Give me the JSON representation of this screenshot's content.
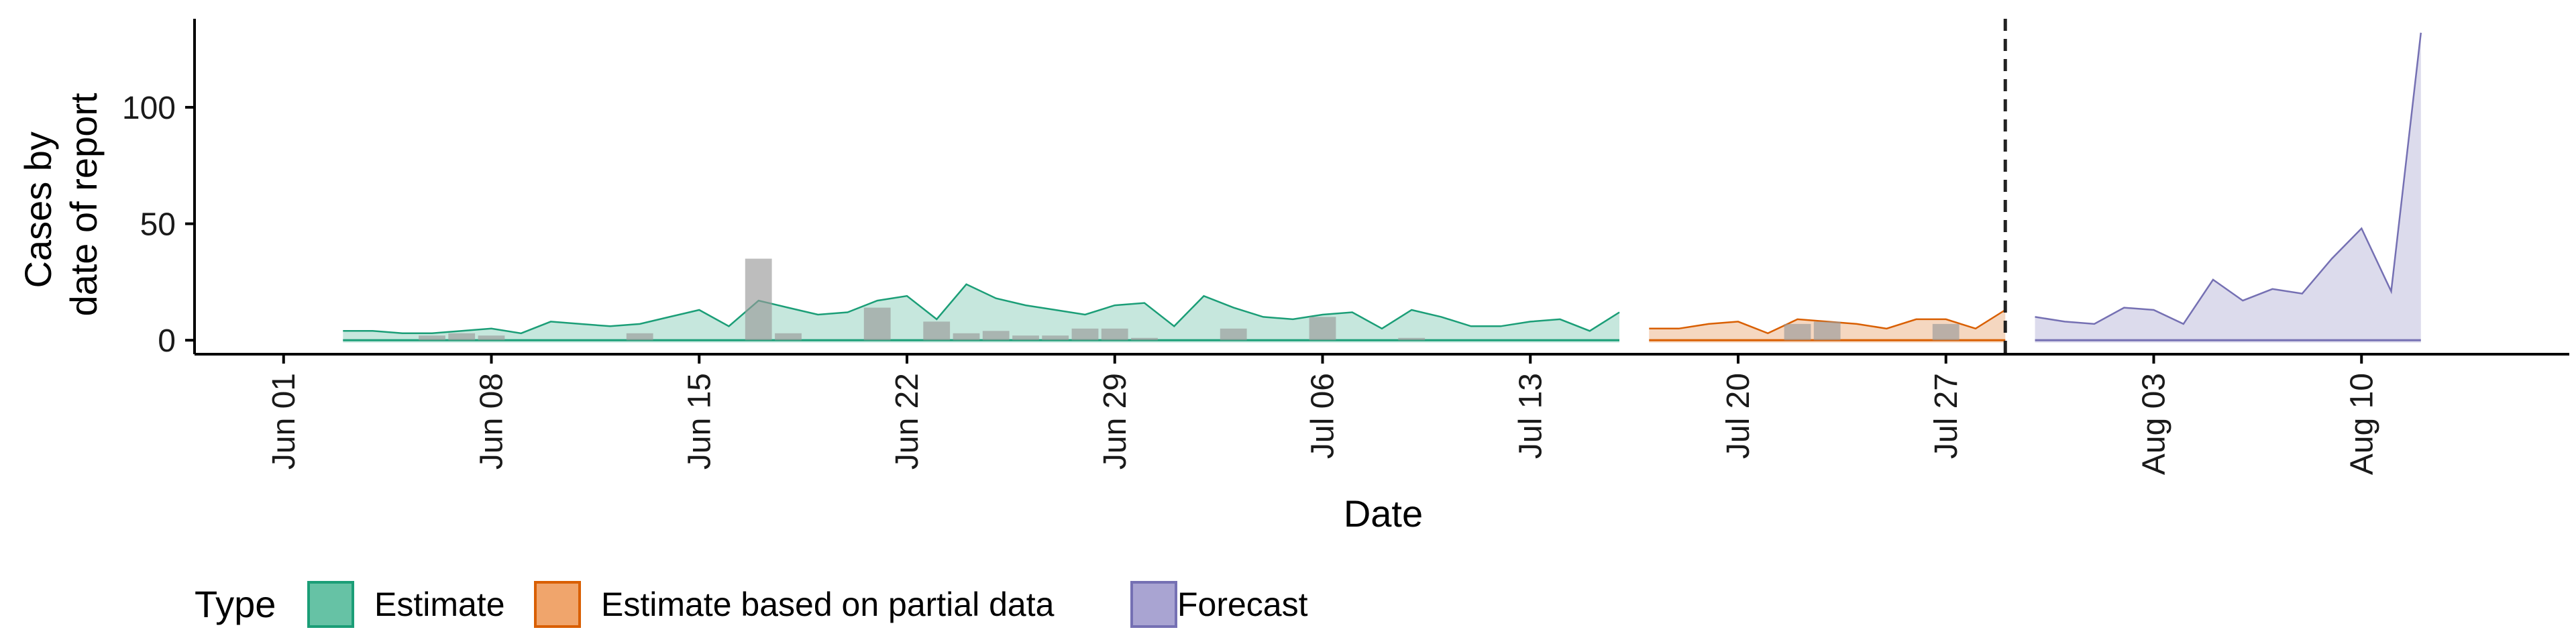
{
  "chart_data": {
    "type": "area",
    "xlabel": "Date",
    "ylabel_lines": [
      "Cases by",
      "date of report"
    ],
    "x_range": [
      "2020-05-29",
      "2020-08-17"
    ],
    "ylim": [
      -6,
      138
    ],
    "y_ticks": [
      0,
      50,
      100
    ],
    "x_ticks": [
      {
        "date": "2020-06-01",
        "label": "Jun 01"
      },
      {
        "date": "2020-06-08",
        "label": "Jun 08"
      },
      {
        "date": "2020-06-15",
        "label": "Jun 15"
      },
      {
        "date": "2020-06-22",
        "label": "Jun 22"
      },
      {
        "date": "2020-06-29",
        "label": "Jun 29"
      },
      {
        "date": "2020-07-06",
        "label": "Jul 06"
      },
      {
        "date": "2020-07-13",
        "label": "Jul 13"
      },
      {
        "date": "2020-07-20",
        "label": "Jul 20"
      },
      {
        "date": "2020-07-27",
        "label": "Jul 27"
      },
      {
        "date": "2020-08-03",
        "label": "Aug 03"
      },
      {
        "date": "2020-08-10",
        "label": "Aug 10"
      }
    ],
    "grid": false,
    "forecast_divider_date": "2020-07-29",
    "legend": {
      "title": "Type",
      "position": "bottom-left",
      "items": [
        {
          "label": "Estimate",
          "fill": "#66c2a5",
          "stroke": "#1b9e77"
        },
        {
          "label": "Estimate based on partial data",
          "fill": "#f0a56c",
          "stroke": "#d95f02"
        },
        {
          "label": "Forecast",
          "fill": "#a9a4d2",
          "stroke": "#7570b3"
        }
      ]
    },
    "series": [
      {
        "name": "Estimate",
        "fill": "#1b9e77",
        "stroke": "#1b9e77",
        "x": [
          "2020-06-03",
          "2020-06-04",
          "2020-06-05",
          "2020-06-06",
          "2020-06-07",
          "2020-06-08",
          "2020-06-09",
          "2020-06-10",
          "2020-06-11",
          "2020-06-12",
          "2020-06-13",
          "2020-06-14",
          "2020-06-15",
          "2020-06-16",
          "2020-06-17",
          "2020-06-18",
          "2020-06-19",
          "2020-06-20",
          "2020-06-21",
          "2020-06-22",
          "2020-06-23",
          "2020-06-24",
          "2020-06-25",
          "2020-06-26",
          "2020-06-27",
          "2020-06-28",
          "2020-06-29",
          "2020-06-30",
          "2020-07-01",
          "2020-07-02",
          "2020-07-03",
          "2020-07-04",
          "2020-07-05",
          "2020-07-06",
          "2020-07-07",
          "2020-07-08",
          "2020-07-09",
          "2020-07-10",
          "2020-07-11",
          "2020-07-12",
          "2020-07-13",
          "2020-07-14",
          "2020-07-15",
          "2020-07-16"
        ],
        "upper": [
          4,
          4,
          3,
          3,
          4,
          5,
          3,
          8,
          7,
          6,
          7,
          10,
          13,
          6,
          17,
          14,
          11,
          12,
          17,
          19,
          9,
          24,
          18,
          15,
          13,
          11,
          15,
          16,
          6,
          19,
          14,
          10,
          9,
          11,
          12,
          5,
          13,
          10,
          6,
          6,
          8,
          9,
          4,
          12
        ],
        "lower": [
          -1,
          -1,
          -1,
          -1,
          -1,
          -1,
          -1,
          -1,
          -1,
          -1,
          -1,
          -1,
          -1,
          -1,
          -1,
          -1,
          -1,
          -1,
          -1,
          -1,
          -1,
          -1,
          -1,
          -1,
          -1,
          -1,
          -1,
          -1,
          -1,
          -1,
          -1,
          -1,
          -1,
          -1,
          -1,
          -1,
          -1,
          -1,
          -1,
          -1,
          -1,
          -1,
          -1,
          -1
        ]
      },
      {
        "name": "Estimate based on partial data",
        "fill": "#d95f02",
        "stroke": "#d95f02",
        "x": [
          "2020-07-17",
          "2020-07-18",
          "2020-07-19",
          "2020-07-20",
          "2020-07-21",
          "2020-07-22",
          "2020-07-23",
          "2020-07-24",
          "2020-07-25",
          "2020-07-26",
          "2020-07-27",
          "2020-07-28",
          "2020-07-29"
        ],
        "upper": [
          5,
          5,
          7,
          8,
          3,
          9,
          8,
          7,
          5,
          9,
          9,
          5,
          13
        ],
        "lower": [
          -1,
          -1,
          -1,
          -1,
          -1,
          -1,
          -1,
          -1,
          -1,
          -1,
          -1,
          -1,
          -1
        ]
      },
      {
        "name": "Forecast",
        "fill": "#7570b3",
        "stroke": "#7570b3",
        "x": [
          "2020-07-30",
          "2020-07-31",
          "2020-08-01",
          "2020-08-02",
          "2020-08-03",
          "2020-08-04",
          "2020-08-05",
          "2020-08-06",
          "2020-08-07",
          "2020-08-08",
          "2020-08-09",
          "2020-08-10",
          "2020-08-11",
          "2020-08-12"
        ],
        "upper": [
          10,
          8,
          7,
          14,
          13,
          7,
          26,
          17,
          22,
          20,
          35,
          48,
          21,
          132
        ],
        "lower": [
          -1,
          -1,
          -1,
          -1,
          -1,
          -1,
          -1,
          -1,
          -1,
          -1,
          -1,
          -1,
          -1,
          -1
        ]
      }
    ],
    "reported_cases": {
      "fill": "#999999",
      "x": [
        "2020-06-06",
        "2020-06-07",
        "2020-06-08",
        "2020-06-13",
        "2020-06-17",
        "2020-06-18",
        "2020-06-21",
        "2020-06-23",
        "2020-06-24",
        "2020-06-25",
        "2020-06-26",
        "2020-06-27",
        "2020-06-28",
        "2020-06-29",
        "2020-06-30",
        "2020-07-03",
        "2020-07-06",
        "2020-07-09",
        "2020-07-22",
        "2020-07-23",
        "2020-07-27"
      ],
      "values": [
        2,
        3,
        2,
        3,
        35,
        3,
        14,
        8,
        3,
        4,
        2,
        2,
        5,
        5,
        1,
        5,
        10,
        1,
        7,
        8,
        7
      ]
    }
  }
}
